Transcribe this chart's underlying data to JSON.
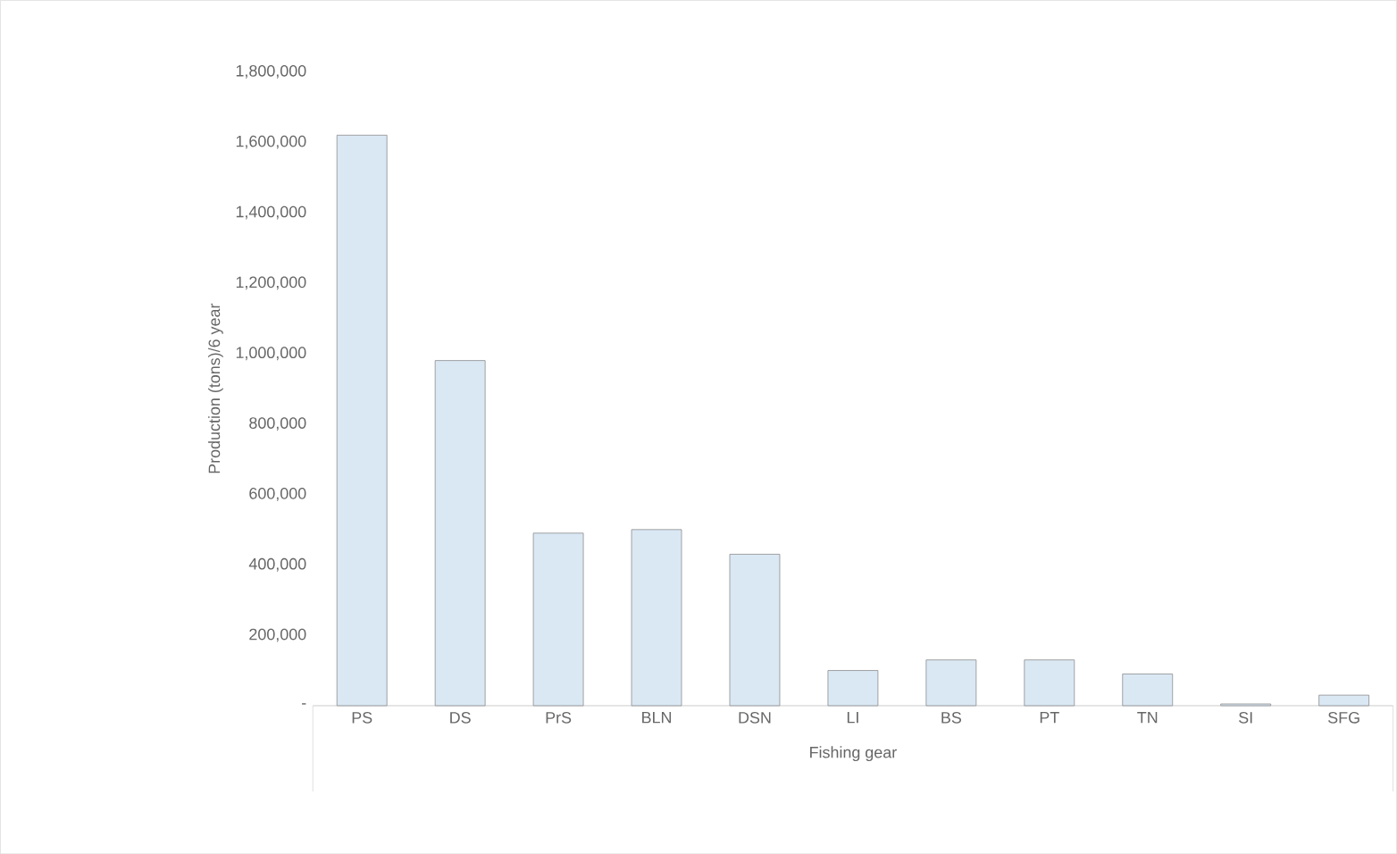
{
  "chart_data": {
    "type": "bar",
    "xlabel": "Fishing gear",
    "ylabel": "Production (tons)/6 year",
    "categories": [
      "PS",
      "DS",
      "PrS",
      "BLN",
      "DSN",
      "LI",
      "BS",
      "PT",
      "TN",
      "SI",
      "SFG"
    ],
    "values": [
      1620000,
      980000,
      490000,
      500000,
      430000,
      100000,
      130000,
      130000,
      90000,
      5000,
      30000
    ],
    "color": "#dae8f4",
    "ylim": [
      0,
      1800000
    ],
    "yticks": [
      {
        "value": 0,
        "label": "-"
      },
      {
        "value": 200000,
        "label": "200,000"
      },
      {
        "value": 400000,
        "label": "400,000"
      },
      {
        "value": 600000,
        "label": "600,000"
      },
      {
        "value": 800000,
        "label": "800,000"
      },
      {
        "value": 1000000,
        "label": "1,000,000"
      },
      {
        "value": 1200000,
        "label": "1,200,000"
      },
      {
        "value": 1400000,
        "label": "1,400,000"
      },
      {
        "value": 1600000,
        "label": "1,600,000"
      },
      {
        "value": 1800000,
        "label": "1,800,000"
      }
    ],
    "grid": false
  }
}
